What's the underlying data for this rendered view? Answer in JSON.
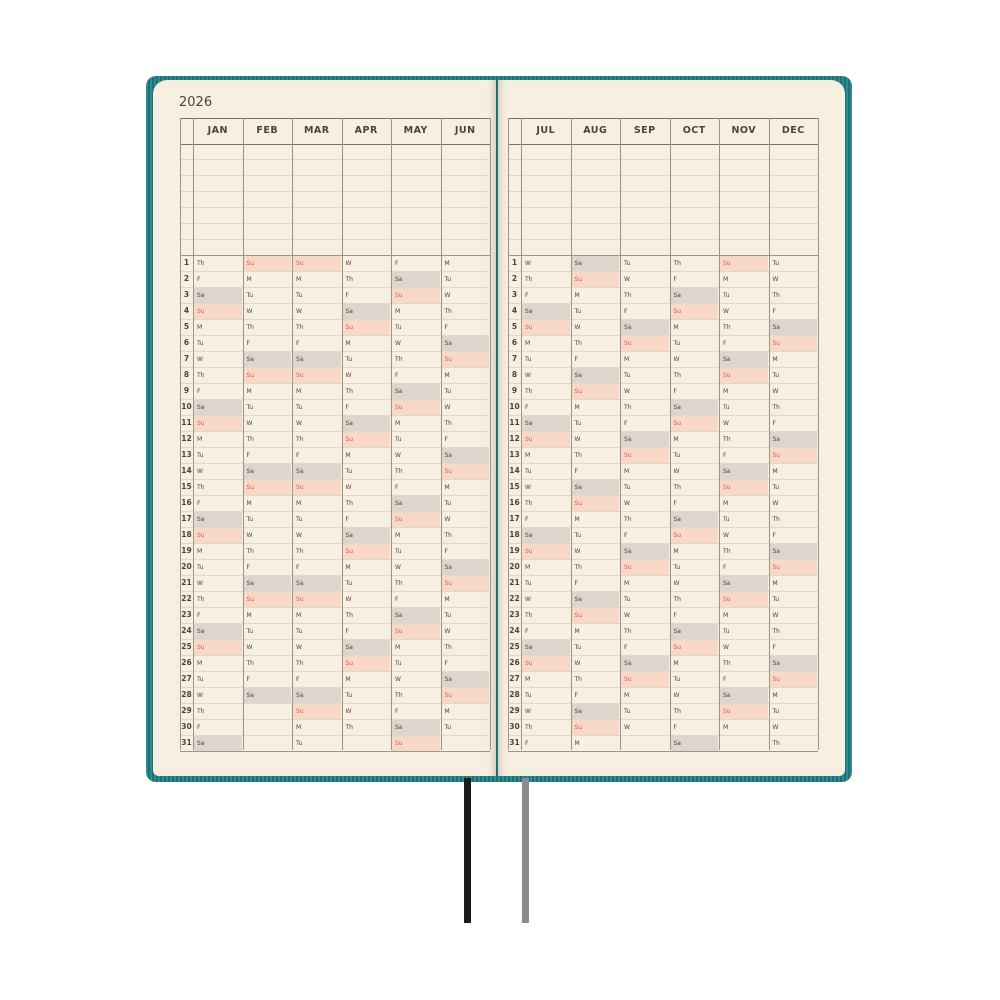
{
  "year": "2026",
  "weekday_labels": [
    "Su",
    "M",
    "Tu",
    "W",
    "Th",
    "F",
    "Sa"
  ],
  "colors": {
    "saturday": "#dcd6cc",
    "sunday": "#f8d9c8",
    "sunday_text": "#e05a4a",
    "paper": "#f7efe1",
    "cover": "#1f6f73"
  },
  "pages": [
    {
      "months": [
        {
          "name": "JAN",
          "first_weekday": 4,
          "days": 31
        },
        {
          "name": "FEB",
          "first_weekday": 0,
          "days": 28
        },
        {
          "name": "MAR",
          "first_weekday": 0,
          "days": 31
        },
        {
          "name": "APR",
          "first_weekday": 3,
          "days": 30
        },
        {
          "name": "MAY",
          "first_weekday": 5,
          "days": 31
        },
        {
          "name": "JUN",
          "first_weekday": 1,
          "days": 30
        }
      ]
    },
    {
      "months": [
        {
          "name": "JUL",
          "first_weekday": 3,
          "days": 31
        },
        {
          "name": "AUG",
          "first_weekday": 6,
          "days": 31
        },
        {
          "name": "SEP",
          "first_weekday": 2,
          "days": 30
        },
        {
          "name": "OCT",
          "first_weekday": 4,
          "days": 31
        },
        {
          "name": "NOV",
          "first_weekday": 0,
          "days": 30
        },
        {
          "name": "DEC",
          "first_weekday": 2,
          "days": 31
        }
      ]
    }
  ]
}
